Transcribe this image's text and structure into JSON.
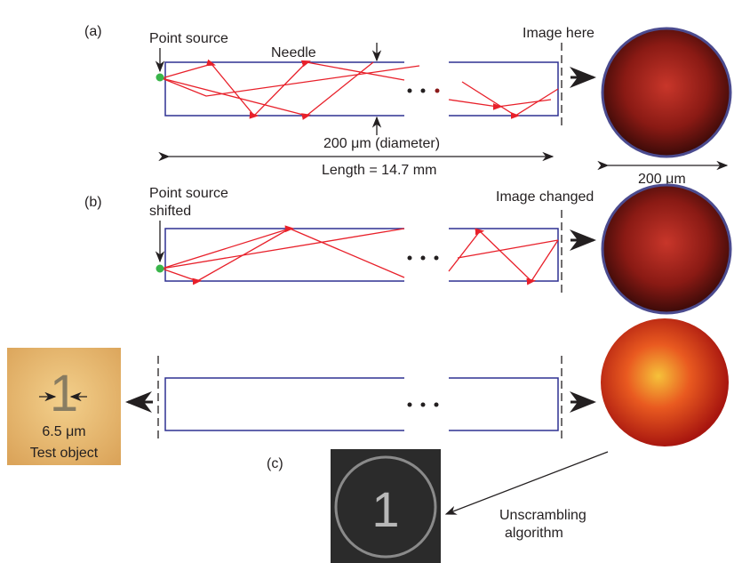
{
  "panels": [
    {
      "label": "(a)",
      "source_label": "Point source",
      "needle_label": "Needle",
      "image_label": "Image here",
      "diameter_label": "200 μm (diameter)",
      "length_label": "Length = 14.7 mm",
      "image_scale_label": "200 μm"
    },
    {
      "label": "(b)",
      "source_label": [
        "Point source",
        "shifted"
      ],
      "image_label": "Image changed"
    },
    {
      "label": "(c)",
      "test_object": {
        "digit": "1",
        "width_label": "6.5 μm",
        "caption": "Test object"
      },
      "algorithm_label": [
        "Unscrambling",
        "algorithm"
      ],
      "reconstruction_digit": "1"
    }
  ]
}
